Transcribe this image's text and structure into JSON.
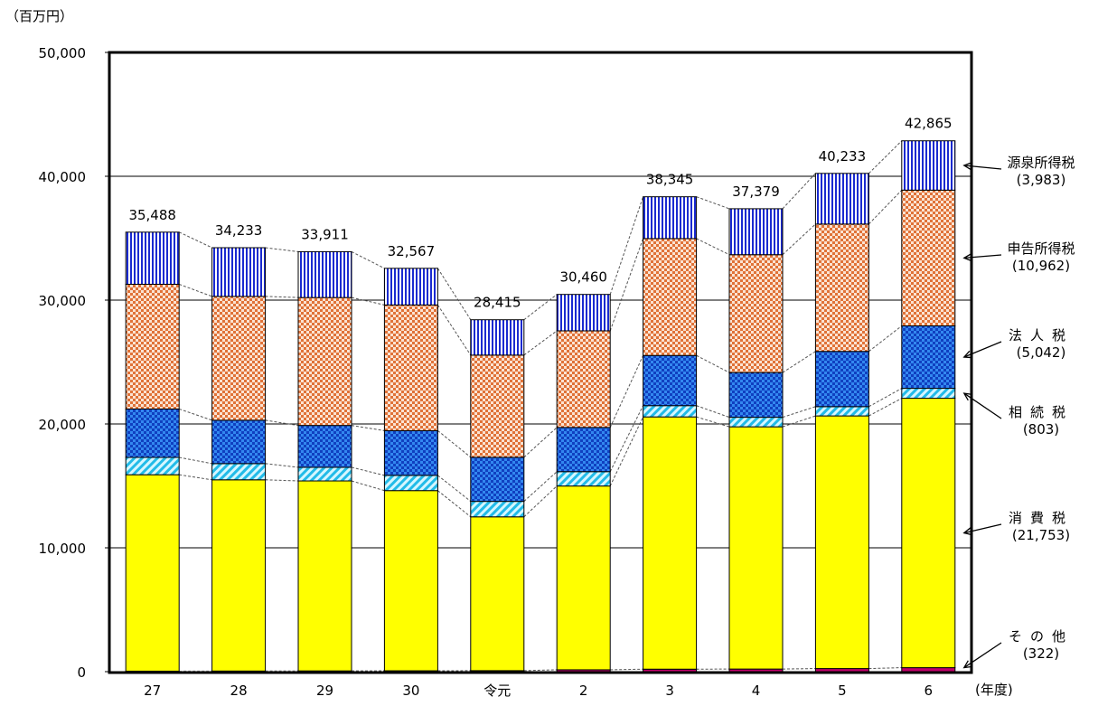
{
  "chart_data": {
    "type": "bar",
    "stacked": true,
    "unit_label": "（百万円）",
    "x_unit_label": "(年度)",
    "categories": [
      "27",
      "28",
      "29",
      "30",
      "令元",
      "2",
      "3",
      "4",
      "5",
      "6"
    ],
    "ylim": [
      0,
      50000
    ],
    "yticks": [
      0,
      10000,
      20000,
      30000,
      40000,
      50000
    ],
    "ytick_labels": [
      "0",
      "10,000",
      "20,000",
      "30,000",
      "40,000",
      "50,000"
    ],
    "grid": true,
    "totals": [
      "35,488",
      "34,233",
      "33,911",
      "32,567",
      "28,415",
      "30,460",
      "38,345",
      "37,379",
      "40,233",
      "42,865"
    ],
    "series": [
      {
        "key": "other",
        "name": "その他",
        "value_label": "(322)",
        "color": "#c0006a",
        "values": [
          40,
          50,
          60,
          70,
          80,
          150,
          200,
          210,
          250,
          322
        ]
      },
      {
        "key": "consumption",
        "name": "消費税",
        "value_label": "(21,753)",
        "color": "#ffff00",
        "values": [
          15860,
          15440,
          15340,
          14550,
          12420,
          14840,
          20370,
          19560,
          20400,
          21753
        ]
      },
      {
        "key": "inheritance",
        "name": "相続税",
        "value_label": "(803)",
        "color": "#33ccee",
        "values": [
          1400,
          1310,
          1100,
          1230,
          1250,
          1160,
          910,
          770,
          750,
          803
        ]
      },
      {
        "key": "corporate",
        "name": "法人税",
        "value_label": "(5,042)",
        "color": "#1f6fd6",
        "values": [
          3910,
          3500,
          3380,
          3610,
          3560,
          3570,
          4050,
          3610,
          4460,
          5042
        ]
      },
      {
        "key": "self_assessed",
        "name": "申告所得税",
        "value_label": "(10,962)",
        "color": "#e8906a",
        "values": [
          10070,
          10000,
          10330,
          10150,
          8250,
          7800,
          9440,
          9520,
          10280,
          10962
        ]
      },
      {
        "key": "withholding",
        "name": "源泉所得税",
        "value_label": "(3,983)",
        "color": "#2233cc",
        "values": [
          4208,
          3933,
          3701,
          2957,
          2855,
          2940,
          3375,
          3709,
          4093,
          3983
        ]
      }
    ]
  }
}
